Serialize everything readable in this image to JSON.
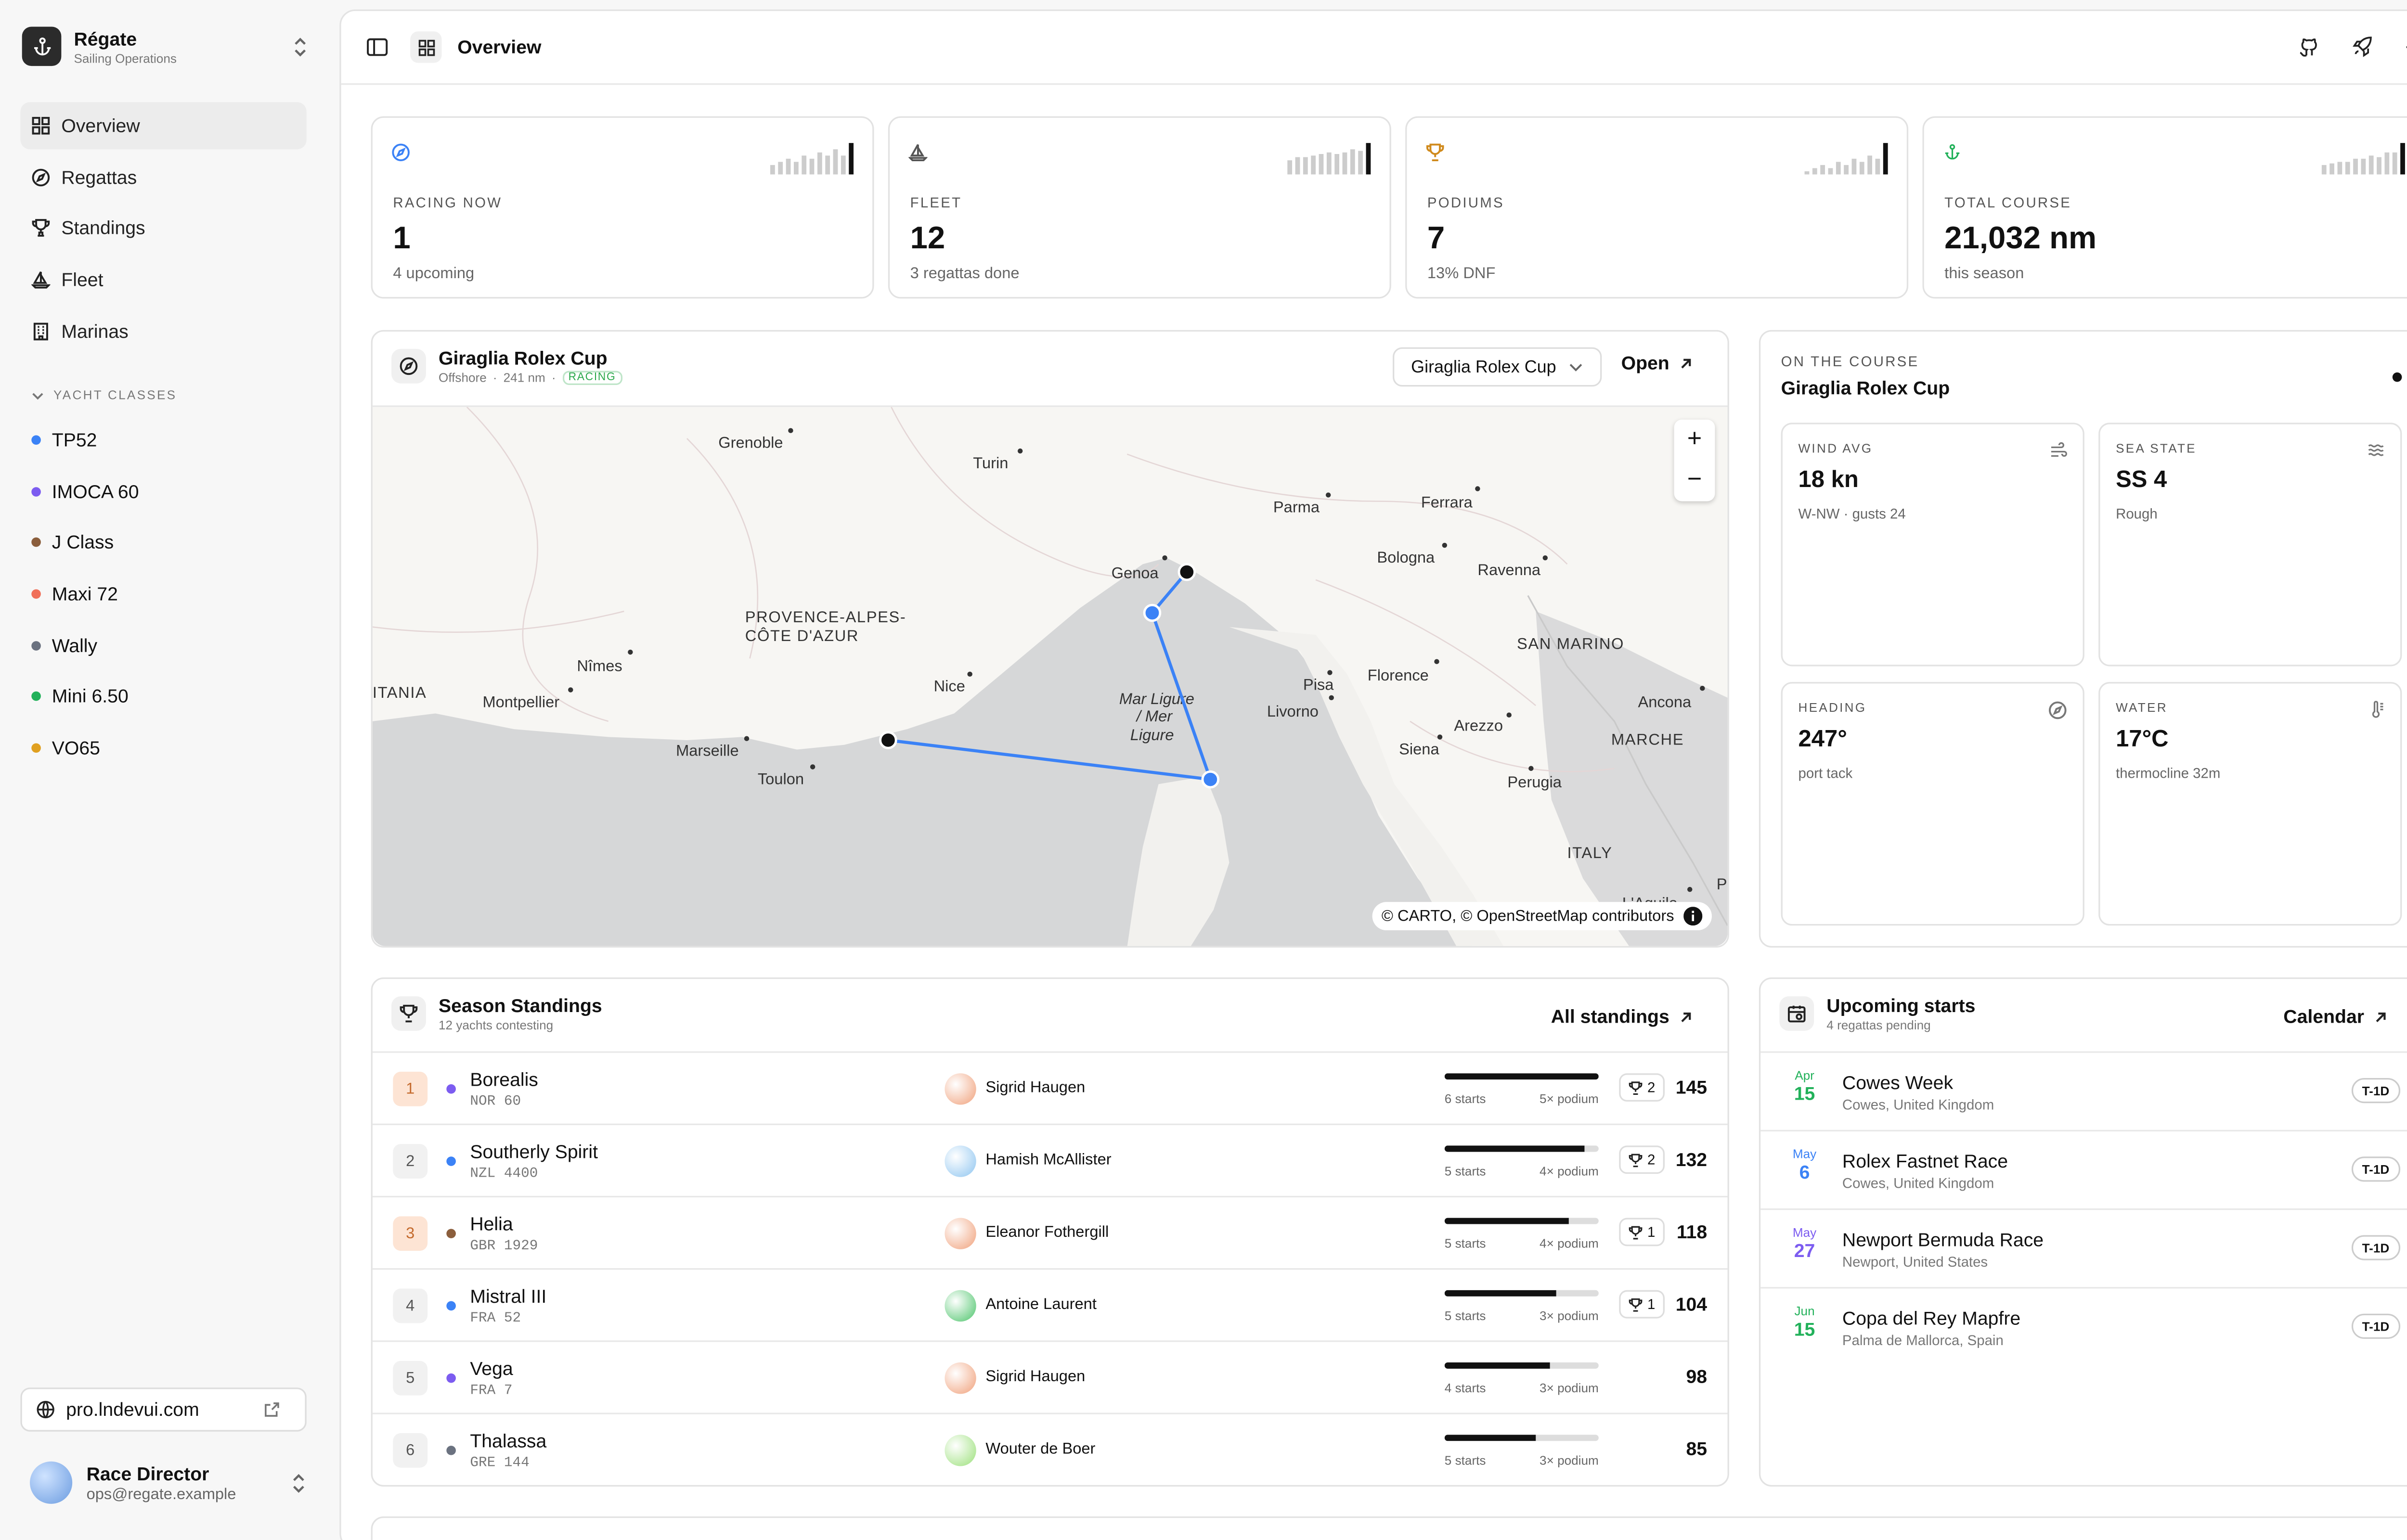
{
  "app": {
    "name": "Régate",
    "subtitle": "Sailing Operations"
  },
  "nav": [
    {
      "label": "Overview",
      "icon": "grid-icon",
      "active": true
    },
    {
      "label": "Regattas",
      "icon": "compass-icon"
    },
    {
      "label": "Standings",
      "icon": "trophy-icon"
    },
    {
      "label": "Fleet",
      "icon": "sailboat-icon"
    },
    {
      "label": "Marinas",
      "icon": "building-icon"
    }
  ],
  "yacht_classes_label": "YACHT CLASSES",
  "yacht_classes": [
    {
      "label": "TP52",
      "color": "#3b82f6"
    },
    {
      "label": "IMOCA 60",
      "color": "#7c5cf0"
    },
    {
      "label": "J Class",
      "color": "#8b5e3c"
    },
    {
      "label": "Maxi 72",
      "color": "#f0705a"
    },
    {
      "label": "Wally",
      "color": "#6b7280"
    },
    {
      "label": "Mini 6.50",
      "color": "#22b15a"
    },
    {
      "label": "VO65",
      "color": "#e0a020"
    }
  ],
  "site_link": "pro.lndevui.com",
  "user": {
    "name": "Race Director",
    "email": "ops@regate.example"
  },
  "topbar": {
    "title": "Overview"
  },
  "stats": [
    {
      "label": "RACING NOW",
      "value": "1",
      "sub": "4 upcoming",
      "icon": "compass-icon",
      "icon_color": "#3b82f6"
    },
    {
      "label": "FLEET",
      "value": "12",
      "sub": "3 regattas done",
      "icon": "sailboat-icon",
      "icon_color": "#555555"
    },
    {
      "label": "PODIUMS",
      "value": "7",
      "sub": "13% DNF",
      "icon": "trophy-icon",
      "icon_color": "#d08a1c"
    },
    {
      "label": "TOTAL COURSE",
      "value": "21,032 nm",
      "sub": "this season",
      "icon": "anchor-icon",
      "icon_color": "#22b15a"
    }
  ],
  "race_card": {
    "title": "Giraglia Rolex Cup",
    "meta_type": "Offshore",
    "meta_dist": "241 nm",
    "status": "RACING",
    "select_value": "Giraglia Rolex Cup",
    "open_label": "Open",
    "attribution": "© CARTO, © OpenStreetMap contributors"
  },
  "map_labels": [
    "Grenoble",
    "Turin",
    "Parma",
    "Ferrara",
    "Bologna",
    "Ravenna",
    "Genoa",
    "PROVENCE-ALPES-",
    "CÔTE D'AZUR",
    "Nîmes",
    "ITANIA",
    "Montpellier",
    "Nice",
    "Mar Ligure",
    "/ Mer",
    "Ligure",
    "Pisa",
    "Livorno",
    "Florence",
    "SAN MARINO",
    "Ancona",
    "Arezzo",
    "Siena",
    "MARCHE",
    "Marseille",
    "Toulon",
    "Perugia",
    "ITALY",
    "L'Aquila",
    "P"
  ],
  "on_course": {
    "label": "ON THE COURSE",
    "title": "Giraglia Rolex Cup",
    "metrics": [
      {
        "label": "WIND AVG",
        "value": "18 kn",
        "sub": "W-NW · gusts 24",
        "icon": "wind-icon"
      },
      {
        "label": "SEA STATE",
        "value": "SS 4",
        "sub": "Rough",
        "icon": "waves-icon"
      },
      {
        "label": "HEADING",
        "value": "247°",
        "sub": "port tack",
        "icon": "compass-icon"
      },
      {
        "label": "WATER",
        "value": "17°C",
        "sub": "thermocline 32m",
        "icon": "thermometer-icon"
      }
    ]
  },
  "standings": {
    "title": "Season Standings",
    "sub": "12 yachts contesting",
    "link": "All standings",
    "rows": [
      {
        "rank": "1",
        "name": "Borealis",
        "sail": "NOR 60",
        "dot": "#7c5cf0",
        "skipper": "Sigrid Haugen",
        "avatar": "#f0a07a",
        "progress": 1.0,
        "starts": "6 starts",
        "podiums": "5× podium",
        "trophies": "2",
        "points": "145",
        "highlight": true
      },
      {
        "rank": "2",
        "name": "Southerly Spirit",
        "sail": "NZL 4400",
        "dot": "#3b82f6",
        "skipper": "Hamish McAllister",
        "avatar": "#8ec5f0",
        "progress": 0.91,
        "starts": "5 starts",
        "podiums": "4× podium",
        "trophies": "2",
        "points": "132",
        "highlight": false
      },
      {
        "rank": "3",
        "name": "Helia",
        "sail": "GBR 1929",
        "dot": "#8b5e3c",
        "skipper": "Eleanor Fothergill",
        "avatar": "#f0a07a",
        "progress": 0.81,
        "starts": "5 starts",
        "podiums": "4× podium",
        "trophies": "1",
        "points": "118",
        "highlight": true
      },
      {
        "rank": "4",
        "name": "Mistral III",
        "sail": "FRA 52",
        "dot": "#3b82f6",
        "skipper": "Antoine Laurent",
        "avatar": "#4cc46a",
        "progress": 0.72,
        "starts": "5 starts",
        "podiums": "3× podium",
        "trophies": "1",
        "points": "104",
        "highlight": false
      },
      {
        "rank": "5",
        "name": "Vega",
        "sail": "FRA 7",
        "dot": "#7c5cf0",
        "skipper": "Sigrid Haugen",
        "avatar": "#f0a07a",
        "progress": 0.68,
        "starts": "4 starts",
        "podiums": "3× podium",
        "trophies": "",
        "points": "98",
        "highlight": false
      },
      {
        "rank": "6",
        "name": "Thalassa",
        "sail": "GRE 144",
        "dot": "#6b7280",
        "skipper": "Wouter de Boer",
        "avatar": "#9be07a",
        "progress": 0.59,
        "starts": "5 starts",
        "podiums": "3× podium",
        "trophies": "",
        "points": "85",
        "highlight": false
      }
    ]
  },
  "upcoming": {
    "title": "Upcoming starts",
    "sub": "4 regattas pending",
    "link": "Calendar",
    "rows": [
      {
        "month": "Apr",
        "day": "15",
        "name": "Cowes Week",
        "location": "Cowes, United Kingdom",
        "badge": "T-1D",
        "color": "#22b15a"
      },
      {
        "month": "May",
        "day": "6",
        "name": "Rolex Fastnet Race",
        "location": "Cowes, United Kingdom",
        "badge": "T-1D",
        "color": "#3b82f6"
      },
      {
        "month": "May",
        "day": "27",
        "name": "Newport Bermuda Race",
        "location": "Newport, United States",
        "badge": "T-1D",
        "color": "#7c5cf0"
      },
      {
        "month": "Jun",
        "day": "15",
        "name": "Copa del Rey Mapfre",
        "location": "Palma de Mallorca, Spain",
        "badge": "T-1D",
        "color": "#22b15a"
      }
    ]
  }
}
